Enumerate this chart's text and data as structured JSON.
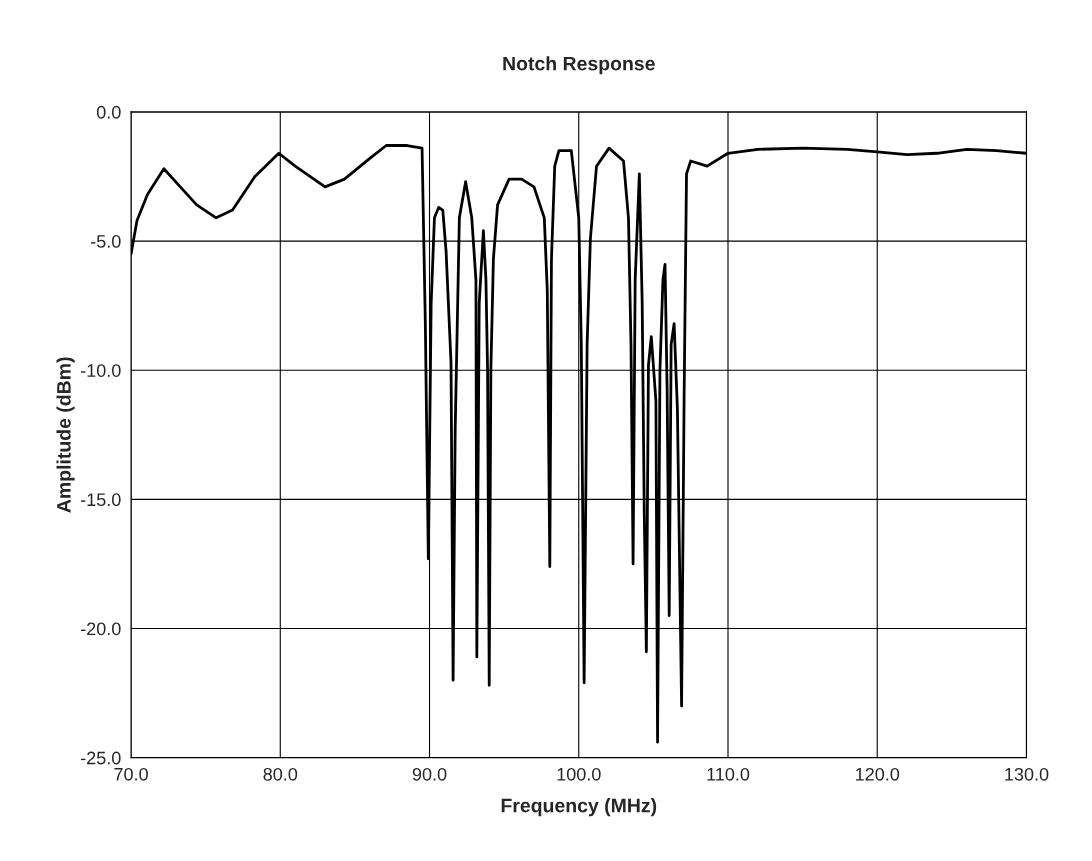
{
  "chart_data": {
    "type": "line",
    "title": "Notch Response",
    "xlabel": "Frequency (MHz)",
    "ylabel": "Amplitude (dBm)",
    "xlim": [
      70,
      130
    ],
    "ylim": [
      -25,
      0
    ],
    "xticks": [
      {
        "value": 70,
        "label": "70.0"
      },
      {
        "value": 80,
        "label": "80.0"
      },
      {
        "value": 90,
        "label": "90.0"
      },
      {
        "value": 100,
        "label": "100.0"
      },
      {
        "value": 110,
        "label": "110.0"
      },
      {
        "value": 120,
        "label": "120.0"
      },
      {
        "value": 130,
        "label": "130.0"
      }
    ],
    "yticks": [
      {
        "value": 0,
        "label": "0.0"
      },
      {
        "value": -5,
        "label": "-5.0"
      },
      {
        "value": -10,
        "label": "-10.0"
      },
      {
        "value": -15,
        "label": "-15.0"
      },
      {
        "value": -20,
        "label": "-20.0"
      },
      {
        "value": -25,
        "label": "-25.0"
      }
    ],
    "grid": true,
    "marker": "none",
    "line_style": "solid",
    "series": [
      {
        "color": "#000000",
        "x": [
          70,
          70.4,
          71.1,
          72.2,
          73.3,
          74.4,
          75.7,
          76.8,
          78.3,
          79.9,
          81,
          83,
          84.3,
          86,
          87.1,
          88.5,
          89.5,
          89.72,
          89.92,
          90.11,
          90.33,
          90.61,
          90.89,
          91.11,
          91.44,
          91.58,
          91.72,
          92,
          92.42,
          92.83,
          93.11,
          93.17,
          93.33,
          93.61,
          93.78,
          93.89,
          94,
          94.11,
          94.28,
          94.56,
          95.33,
          96.17,
          97,
          97.69,
          97.89,
          98.06,
          98.17,
          98.39,
          98.67,
          99.5,
          100,
          100.17,
          100.36,
          100.56,
          100.78,
          101.19,
          102.03,
          103,
          103.33,
          103.5,
          103.64,
          103.78,
          104.06,
          104.25,
          104.39,
          104.53,
          104.67,
          104.86,
          105.17,
          105.28,
          105.44,
          105.64,
          105.78,
          105.92,
          106.06,
          106.19,
          106.39,
          106.61,
          106.89,
          107.06,
          107.22,
          107.5,
          108.6,
          110,
          112,
          115,
          118,
          120,
          122,
          124,
          126,
          128,
          130
        ],
        "values": [
          -5.5,
          -4.2,
          -3.2,
          -2.2,
          -2.9,
          -3.6,
          -4.1,
          -3.8,
          -2.5,
          -1.6,
          -2.1,
          -2.9,
          -2.6,
          -1.8,
          -1.3,
          -1.3,
          -1.4,
          -8.2,
          -17.3,
          -7.4,
          -4.1,
          -3.7,
          -3.8,
          -5.4,
          -9.7,
          -22,
          -12.3,
          -4.1,
          -2.7,
          -4.1,
          -6.5,
          -21.1,
          -7.4,
          -4.6,
          -6.5,
          -10,
          -22.2,
          -10,
          -5.7,
          -3.6,
          -2.6,
          -2.6,
          -2.9,
          -4.1,
          -6.9,
          -17.6,
          -5.7,
          -2.1,
          -1.5,
          -1.5,
          -4.1,
          -9,
          -22.1,
          -9,
          -4.9,
          -2.1,
          -1.4,
          -1.9,
          -4.1,
          -9,
          -17.5,
          -6.5,
          -2.4,
          -7.4,
          -15.6,
          -20.9,
          -9.8,
          -8.7,
          -11.2,
          -24.4,
          -10,
          -6.5,
          -5.9,
          -10.7,
          -19.5,
          -9,
          -8.2,
          -11.5,
          -23,
          -11,
          -2.4,
          -1.9,
          -2.1,
          -1.6,
          -1.45,
          -1.4,
          -1.45,
          -1.55,
          -1.65,
          -1.6,
          -1.45,
          -1.5,
          -1.6
        ]
      }
    ]
  }
}
